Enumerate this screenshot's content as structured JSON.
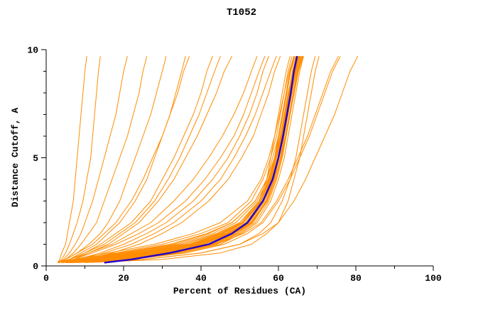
{
  "title": "T1052",
  "axes": {
    "xlabel": "Percent of Residues (CA)",
    "ylabel": "Distance Cutoff, A",
    "xlim": [
      0,
      100
    ],
    "ylim": [
      0,
      10
    ],
    "xticks_major": [
      0,
      20,
      40,
      60,
      80,
      100
    ],
    "xticks_minor": [
      10,
      30,
      50,
      70,
      90
    ],
    "yticks_major": [
      0,
      5,
      10
    ],
    "yticks_minor": [
      1,
      2,
      3,
      4,
      6,
      7,
      8,
      9
    ],
    "xtick_labels": [
      "0",
      "20",
      "40",
      "60",
      "80",
      "100"
    ],
    "ytick_labels": [
      "0",
      "5",
      "10"
    ]
  },
  "colors": {
    "model": "#ff8c00",
    "reference": "#2200cc",
    "axis": "#000000",
    "text": "#000000",
    "background": "#ffffff"
  },
  "chart_data": {
    "type": "line",
    "title": "T1052",
    "xlabel": "Percent of Residues (CA)",
    "ylabel": "Distance Cutoff, A",
    "xlim": [
      0,
      100
    ],
    "ylim": [
      0,
      10
    ],
    "grid": false,
    "legend": "none",
    "description": "Cumulative percent of CA residues under distance cutoff; many orange model curves, one blue highlighted model",
    "y_samples": [
      0.15,
      0.3,
      0.6,
      1,
      1.5,
      2,
      3,
      4,
      5,
      6,
      7,
      8,
      9,
      9.7
    ],
    "orange_curves": [
      [
        4,
        10,
        22,
        35,
        44,
        50,
        55,
        57,
        58,
        59,
        60,
        61,
        62,
        63
      ],
      [
        5,
        14,
        28,
        40,
        47,
        52,
        56,
        58,
        59,
        60,
        61,
        62,
        63,
        64
      ],
      [
        3,
        8,
        18,
        30,
        40,
        47,
        53,
        56,
        58,
        59.5,
        60.5,
        61.5,
        62.5,
        63.5
      ],
      [
        6,
        18,
        32,
        43,
        49,
        53,
        57,
        59,
        60.5,
        61.5,
        62.5,
        63.5,
        64.5,
        65.5
      ],
      [
        4,
        12,
        25,
        38,
        46,
        51,
        55.5,
        57.5,
        59,
        60,
        61,
        62,
        63,
        64.2
      ],
      [
        5,
        16,
        30,
        42,
        48,
        52.5,
        56.5,
        58.5,
        60,
        61,
        62,
        63,
        64,
        65
      ],
      [
        3,
        9,
        20,
        33,
        42,
        48,
        54,
        57,
        58.5,
        60,
        61,
        62,
        63,
        64
      ],
      [
        4,
        13,
        26,
        39,
        46.5,
        51.5,
        56,
        58,
        59.5,
        60.5,
        61.5,
        62.5,
        63.8,
        65
      ],
      [
        6,
        20,
        34,
        44,
        50,
        54,
        57.5,
        59.5,
        61,
        62,
        63,
        64,
        65,
        66
      ],
      [
        5,
        15,
        29,
        41,
        47.5,
        52,
        56,
        58,
        59.5,
        61,
        62,
        63,
        64,
        65.2
      ],
      [
        4,
        11,
        24,
        37,
        45,
        50.5,
        55,
        57.5,
        59,
        60.2,
        61.2,
        62.2,
        63.2,
        64.5
      ],
      [
        3,
        7,
        16,
        28,
        38,
        45,
        52,
        55.5,
        57.5,
        59,
        60.3,
        61.5,
        62.8,
        64
      ],
      [
        5,
        17,
        31,
        42.5,
        48.5,
        53,
        56.8,
        58.8,
        60.2,
        61.3,
        62.3,
        63.3,
        64.3,
        65.5
      ],
      [
        4,
        12,
        26,
        38.5,
        46,
        51,
        55.5,
        58,
        59.5,
        60.8,
        61.8,
        62.8,
        64,
        65.3
      ],
      [
        6,
        19,
        33,
        43.5,
        49.5,
        53.5,
        57,
        59,
        60.5,
        61.8,
        62.8,
        63.8,
        64.8,
        66
      ],
      [
        3,
        8,
        19,
        32,
        41.5,
        48,
        54,
        57,
        59,
        60.5,
        61.7,
        62.7,
        63.7,
        64.8
      ],
      [
        5,
        14,
        27,
        39.5,
        46.8,
        51.8,
        56.2,
        58.3,
        59.8,
        61,
        62,
        63,
        64.2,
        65.4
      ],
      [
        4,
        10,
        23,
        36,
        44.5,
        50,
        55,
        57.6,
        59.2,
        60.5,
        61.6,
        62.6,
        63.6,
        64.7
      ],
      [
        6,
        21,
        35,
        45,
        50.5,
        54.5,
        58,
        60,
        61.5,
        62.5,
        63.5,
        64.5,
        65.5,
        66.5
      ],
      [
        5,
        13,
        25,
        37.5,
        45.5,
        51,
        55.8,
        58.2,
        59.8,
        61.2,
        62.2,
        63.2,
        64.4,
        65.6
      ],
      [
        4,
        15,
        28,
        40.5,
        47.2,
        52.2,
        56.5,
        58.6,
        60,
        61.4,
        62.4,
        63.5,
        64.6,
        65.8
      ],
      [
        3,
        9,
        21,
        34,
        43,
        49,
        54.5,
        57.3,
        59.3,
        60.7,
        61.9,
        63,
        64.1,
        65.2
      ],
      [
        5,
        16,
        30.5,
        42,
        48.2,
        52.8,
        56.9,
        59,
        60.6,
        61.9,
        62.9,
        64,
        65,
        66.2
      ],
      [
        4,
        11,
        24.5,
        37,
        45.2,
        50.8,
        55.3,
        57.8,
        59.4,
        60.9,
        62,
        63.1,
        64.3,
        65.5
      ],
      [
        6,
        18,
        32.5,
        43,
        49,
        53.2,
        57.2,
        59.3,
        60.8,
        62,
        63,
        64.1,
        65.2,
        66.4
      ],
      [
        8,
        25,
        40,
        50,
        55,
        58,
        61,
        63,
        64.5,
        65.5,
        66.5,
        67.5,
        68.5,
        69.5
      ],
      [
        10,
        30,
        45,
        53,
        57,
        60,
        62.5,
        64,
        65.5,
        66.5,
        67.5,
        68.5,
        69.5,
        70.5
      ],
      [
        3,
        3.5,
        4,
        5,
        5.5,
        6,
        7,
        7.5,
        8,
        8.5,
        9,
        9.5,
        10,
        10.5
      ],
      [
        3,
        4,
        5,
        6,
        7,
        8,
        9.5,
        10.5,
        11.5,
        12,
        12.5,
        13,
        13.5,
        14
      ],
      [
        3,
        4.5,
        6,
        7.5,
        9,
        10,
        12,
        13.5,
        15,
        16.5,
        18,
        19,
        20,
        21
      ],
      [
        3,
        5,
        7,
        9,
        11,
        13,
        15,
        17,
        19,
        21,
        22.5,
        24,
        25,
        26
      ],
      [
        3,
        5,
        8,
        11,
        14,
        16,
        19,
        21,
        23,
        25,
        27,
        28.5,
        30,
        31
      ],
      [
        4,
        6,
        9,
        13,
        16,
        19,
        23,
        26,
        28,
        30,
        32,
        34,
        35.5,
        37
      ],
      [
        3,
        6,
        10,
        14,
        18,
        22,
        27,
        30,
        33,
        35.5,
        38,
        40,
        41.5,
        43
      ],
      [
        4,
        7,
        11,
        16,
        20,
        24,
        29,
        33,
        36,
        39,
        41.5,
        44,
        46,
        48
      ],
      [
        3,
        5,
        8,
        12,
        15,
        18,
        22,
        25,
        27.5,
        30,
        32,
        33.5,
        35,
        36
      ],
      [
        4,
        6,
        10,
        15,
        19,
        23,
        28,
        31.5,
        34.5,
        37,
        39.5,
        41.5,
        43.5,
        45
      ],
      [
        4,
        8,
        14,
        20,
        26,
        31,
        38,
        43,
        47,
        50,
        52.5,
        54.5,
        56,
        57.5
      ],
      [
        3,
        7,
        12,
        18,
        24,
        29,
        36,
        41,
        45,
        48.5,
        51,
        53,
        55,
        56.5
      ],
      [
        5,
        10,
        17,
        24,
        30,
        35,
        42,
        47,
        50.5,
        53.5,
        55.5,
        57.5,
        59,
        60.5
      ],
      [
        4,
        9,
        15,
        22,
        28,
        33,
        40,
        45,
        48.5,
        51.5,
        54,
        56,
        58,
        59.5
      ],
      [
        3,
        6,
        11,
        17,
        22,
        27,
        33,
        38,
        42,
        45.5,
        48.5,
        51,
        53,
        54.5
      ],
      [
        6,
        22,
        36,
        46,
        52,
        56,
        60,
        63,
        65.5,
        68,
        70,
        72,
        74,
        76
      ],
      [
        7,
        25,
        40,
        50,
        56,
        60,
        64,
        67,
        69.5,
        72,
        74.5,
        76.5,
        78.5,
        80.5
      ],
      [
        5,
        18,
        33,
        44,
        51,
        55.5,
        59.5,
        62.5,
        65,
        67.5,
        69.5,
        71.5,
        73.5,
        75.5
      ]
    ],
    "blue_curve": [
      15,
      22,
      32,
      42,
      48,
      52,
      56,
      58.5,
      60,
      61.2,
      62.2,
      63.2,
      64,
      64.8
    ]
  }
}
